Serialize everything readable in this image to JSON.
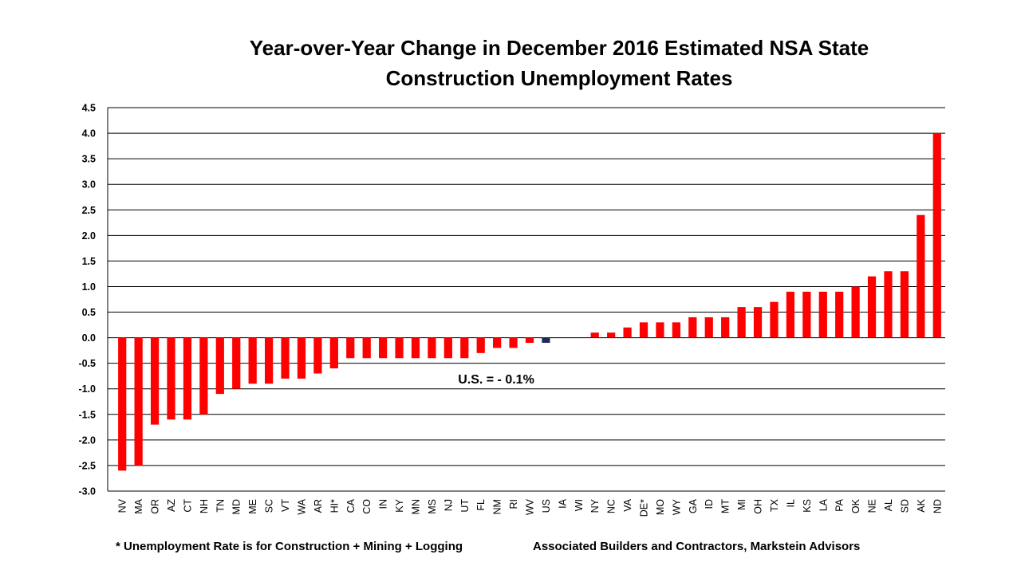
{
  "chart_data": {
    "type": "bar",
    "title_lines": [
      "Year-over-Year Change in December 2016 Estimated NSA State",
      "Construction Unemployment Rates"
    ],
    "xlabel": "",
    "ylabel": "",
    "ylim": [
      -3.0,
      4.5
    ],
    "ytick_step": 0.5,
    "ytick_labels": [
      "4.5",
      "4.0",
      "3.5",
      "3.0",
      "2.5",
      "2.0",
      "1.5",
      "1.0",
      "0.5",
      "0.0",
      "-0.5",
      "-1.0",
      "-1.5",
      "-2.0",
      "-2.5",
      "-3.0"
    ],
    "grid": true,
    "legend": "none",
    "categories": [
      "NV",
      "MA",
      "OR",
      "AZ",
      "CT",
      "NH",
      "TN",
      "MD",
      "ME",
      "SC",
      "VT",
      "WA",
      "AR",
      "HI*",
      "CA",
      "CO",
      "IN",
      "KY",
      "MN",
      "MS",
      "NJ",
      "UT",
      "FL",
      "NM",
      "RI",
      "WV",
      "US",
      "IA",
      "WI",
      "NY",
      "NC",
      "VA",
      "DE*",
      "MO",
      "WY",
      "GA",
      "ID",
      "MT",
      "MI",
      "OH",
      "TX",
      "IL",
      "KS",
      "LA",
      "PA",
      "OK",
      "NE",
      "AL",
      "SD",
      "AK",
      "ND"
    ],
    "values": [
      -2.6,
      -2.5,
      -1.7,
      -1.6,
      -1.6,
      -1.5,
      -1.1,
      -1.0,
      -0.9,
      -0.9,
      -0.8,
      -0.8,
      -0.7,
      -0.6,
      -0.4,
      -0.4,
      -0.4,
      -0.4,
      -0.4,
      -0.4,
      -0.4,
      -0.4,
      -0.3,
      -0.2,
      -0.2,
      -0.1,
      -0.1,
      0.0,
      0.0,
      0.1,
      0.1,
      0.2,
      0.3,
      0.3,
      0.3,
      0.4,
      0.4,
      0.4,
      0.6,
      0.6,
      0.7,
      0.9,
      0.9,
      0.9,
      0.9,
      1.0,
      1.2,
      1.3,
      1.3,
      2.4,
      4.0
    ],
    "highlight_category": "US",
    "colors": {
      "bar": "#ff0000",
      "highlight": "#1f2a5c",
      "grid": "#000000",
      "axis": "#000000"
    },
    "annotation": "U.S. = - 0.1%",
    "footnote_left": "* Unemployment Rate is for Construction + Mining + Logging",
    "footnote_right": "Associated Builders and Contractors, Markstein Advisors"
  }
}
